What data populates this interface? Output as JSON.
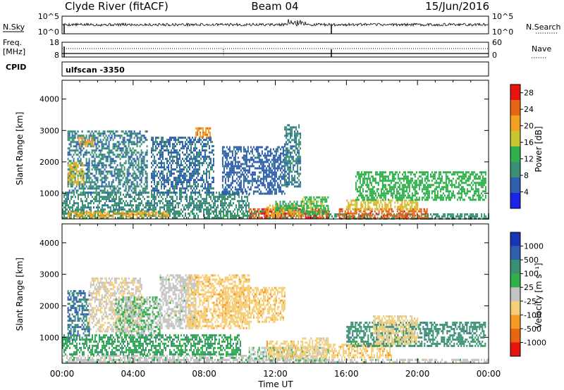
{
  "header": {
    "station": "Clyde River (fitACF)",
    "beam": "Beam 04",
    "date": "15/Jun/2016"
  },
  "top_panels": {
    "nsky_label": "N.Sky",
    "nsky_ticks": [
      "10^5",
      "10^0"
    ],
    "nsearch_label": "N.Search",
    "nsearch_ticks": [
      "10^5",
      "10^0"
    ],
    "freq_label": "Freq.",
    "freq_unit": "[MHz]",
    "freq_ticks": [
      "18",
      "8"
    ],
    "nave_label": "Nave",
    "nave_ticks": [
      "60",
      "0"
    ],
    "cpid_label": "CPID",
    "cpid_value": "ulfscan -3350"
  },
  "colors": {
    "power": [
      "#1a23e6",
      "#2e5fae",
      "#3a8f75",
      "#2fb04a",
      "#c8c630",
      "#f5a01f",
      "#e86612",
      "#e8150f"
    ],
    "velocity": [
      "#e8150f",
      "#e86612",
      "#f59a25",
      "#f4cf78",
      "#c3c3c3",
      "#2fb04a",
      "#3a8f75",
      "#2e5fae",
      "#1a34b8"
    ]
  },
  "chart_data": [
    {
      "type": "heatmap",
      "quantity": "Power",
      "xlabel": "",
      "ylabel": "Slant Range [km]",
      "xlim": [
        "00:00",
        "24:00"
      ],
      "ylim": [
        180,
        4600
      ],
      "yticks": [
        1000,
        2000,
        3000,
        4000
      ],
      "colorbar": {
        "label": "Power [dB]",
        "ticks": [
          "28",
          "24",
          "20",
          "16",
          "12",
          "8",
          "4"
        ],
        "range": [
          0,
          30
        ]
      },
      "regions": [
        {
          "t0": 0.0,
          "t1": 15.0,
          "r0": 200,
          "r1": 450,
          "v": 10
        },
        {
          "t0": 0.3,
          "t1": 6.0,
          "r0": 230,
          "r1": 420,
          "v": 20
        },
        {
          "t0": 10.5,
          "t1": 15.0,
          "r0": 220,
          "r1": 520,
          "v": 26
        },
        {
          "t0": 11.5,
          "t1": 13.6,
          "r0": 300,
          "r1": 640,
          "v": 20
        },
        {
          "t0": 12.0,
          "t1": 13.5,
          "r0": 430,
          "r1": 760,
          "v": 12
        },
        {
          "t0": 13.5,
          "t1": 15.0,
          "r0": 300,
          "r1": 900,
          "v": 14
        },
        {
          "t0": 15.0,
          "t1": 24.0,
          "r0": 200,
          "r1": 360,
          "v": 10
        },
        {
          "t0": 15.5,
          "t1": 20.5,
          "r0": 250,
          "r1": 520,
          "v": 25
        },
        {
          "t0": 16.0,
          "t1": 20.0,
          "r0": 500,
          "r1": 800,
          "v": 18
        },
        {
          "t0": 16.5,
          "t1": 23.8,
          "r0": 800,
          "r1": 1700,
          "v": 13
        },
        {
          "t0": 0.0,
          "t1": 10.5,
          "r0": 500,
          "r1": 1050,
          "v": 9
        },
        {
          "t0": 5.0,
          "t1": 8.5,
          "r0": 1000,
          "r1": 2800,
          "v": 7
        },
        {
          "t0": 0.3,
          "t1": 4.8,
          "r0": 1000,
          "r1": 3000,
          "v": 8
        },
        {
          "t0": 0.3,
          "t1": 1.2,
          "r0": 1300,
          "r1": 2000,
          "v": 18
        },
        {
          "t0": 0.9,
          "t1": 1.7,
          "r0": 2500,
          "r1": 2800,
          "v": 20
        },
        {
          "t0": 7.5,
          "t1": 8.3,
          "r0": 2800,
          "r1": 3100,
          "v": 22
        },
        {
          "t0": 9.0,
          "t1": 12.5,
          "r0": 1000,
          "r1": 2500,
          "v": 6
        },
        {
          "t0": 12.5,
          "t1": 13.4,
          "r0": 1200,
          "r1": 3200,
          "v": 8
        }
      ]
    },
    {
      "type": "heatmap",
      "quantity": "Velocity",
      "xlabel": "Time UT",
      "ylabel": "Slant Range [km]",
      "xlim": [
        "00:00",
        "24:00"
      ],
      "ylim": [
        180,
        4600
      ],
      "xticks": [
        "00:00",
        "04:00",
        "08:00",
        "12:00",
        "16:00",
        "20:00",
        "00:00"
      ],
      "yticks": [
        1000,
        2000,
        3000,
        4000
      ],
      "colorbar": {
        "label": "Velocity [m s⁻¹]",
        "ticks": [
          "1000",
          "500",
          "100",
          "25",
          "-25",
          "-100",
          "-500",
          "-1000"
        ],
        "range": [
          -1250,
          1250
        ]
      },
      "regions": [
        {
          "t0": 0.0,
          "t1": 24.0,
          "r0": 200,
          "r1": 320,
          "v": 0
        },
        {
          "t0": 0.0,
          "t1": 10.5,
          "r0": 220,
          "r1": 450,
          "v": 30
        },
        {
          "t0": 10.5,
          "t1": 15.0,
          "r0": 250,
          "r1": 700,
          "v": 70
        },
        {
          "t0": 11.5,
          "t1": 13.5,
          "r0": 350,
          "r1": 900,
          "v": -300
        },
        {
          "t0": 13.5,
          "t1": 15.0,
          "r0": 350,
          "r1": 1000,
          "v": -250
        },
        {
          "t0": 15.0,
          "t1": 18.5,
          "r0": 350,
          "r1": 800,
          "v": -300
        },
        {
          "t0": 16.0,
          "t1": 23.8,
          "r0": 700,
          "r1": 1500,
          "v": 550
        },
        {
          "t0": 17.5,
          "t1": 20.0,
          "r0": 800,
          "r1": 1700,
          "v": -250
        },
        {
          "t0": 0.3,
          "t1": 1.5,
          "r0": 900,
          "r1": 2500,
          "v": 700
        },
        {
          "t0": 1.5,
          "t1": 4.5,
          "r0": 1200,
          "r1": 2900,
          "v": -120
        },
        {
          "t0": 3.0,
          "t1": 5.5,
          "r0": 1000,
          "r1": 2300,
          "v": 150
        },
        {
          "t0": 5.5,
          "t1": 7.5,
          "r0": 1300,
          "r1": 3000,
          "v": 0
        },
        {
          "t0": 7.0,
          "t1": 10.5,
          "r0": 1300,
          "r1": 3000,
          "v": -300
        },
        {
          "t0": 9.0,
          "t1": 12.5,
          "r0": 1500,
          "r1": 2600,
          "v": -300
        },
        {
          "t0": 0.0,
          "t1": 10.0,
          "r0": 450,
          "r1": 1100,
          "v": 400
        }
      ]
    }
  ]
}
